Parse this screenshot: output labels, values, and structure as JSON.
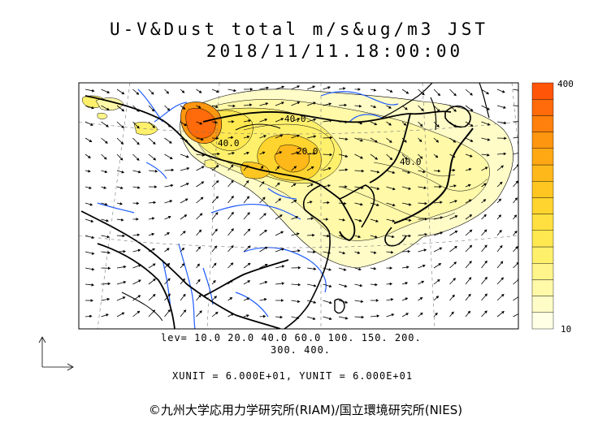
{
  "title": {
    "line1": "U-V&Dust total m/s&ug/m3 JST",
    "line2": "2018/11/11.18:00:00"
  },
  "contour_labels": [
    "40.0",
    "40.0",
    "40.0",
    "20.0"
  ],
  "legend": {
    "lev_line1": "lev= 10.0 20.0 40.0 60.0 100. 150. 200.",
    "lev_line2": "300. 400.",
    "units_line": "XUNIT = 6.000E+01, YUNIT = 6.000E+01"
  },
  "colorbar": {
    "max_label": "400",
    "min_label": "10",
    "colors": [
      "#ffffe6",
      "#fffcc8",
      "#fff9a8",
      "#fff58a",
      "#fff06c",
      "#ffe850",
      "#ffe040",
      "#ffd42e",
      "#ffc622",
      "#ffb81a",
      "#ffa814",
      "#ff960f",
      "#ff800c",
      "#ff6a0a",
      "#ff5508"
    ]
  },
  "credit": "©九州大学応用力学研究所(RIAM)/国立環境研究所(NIES)"
}
